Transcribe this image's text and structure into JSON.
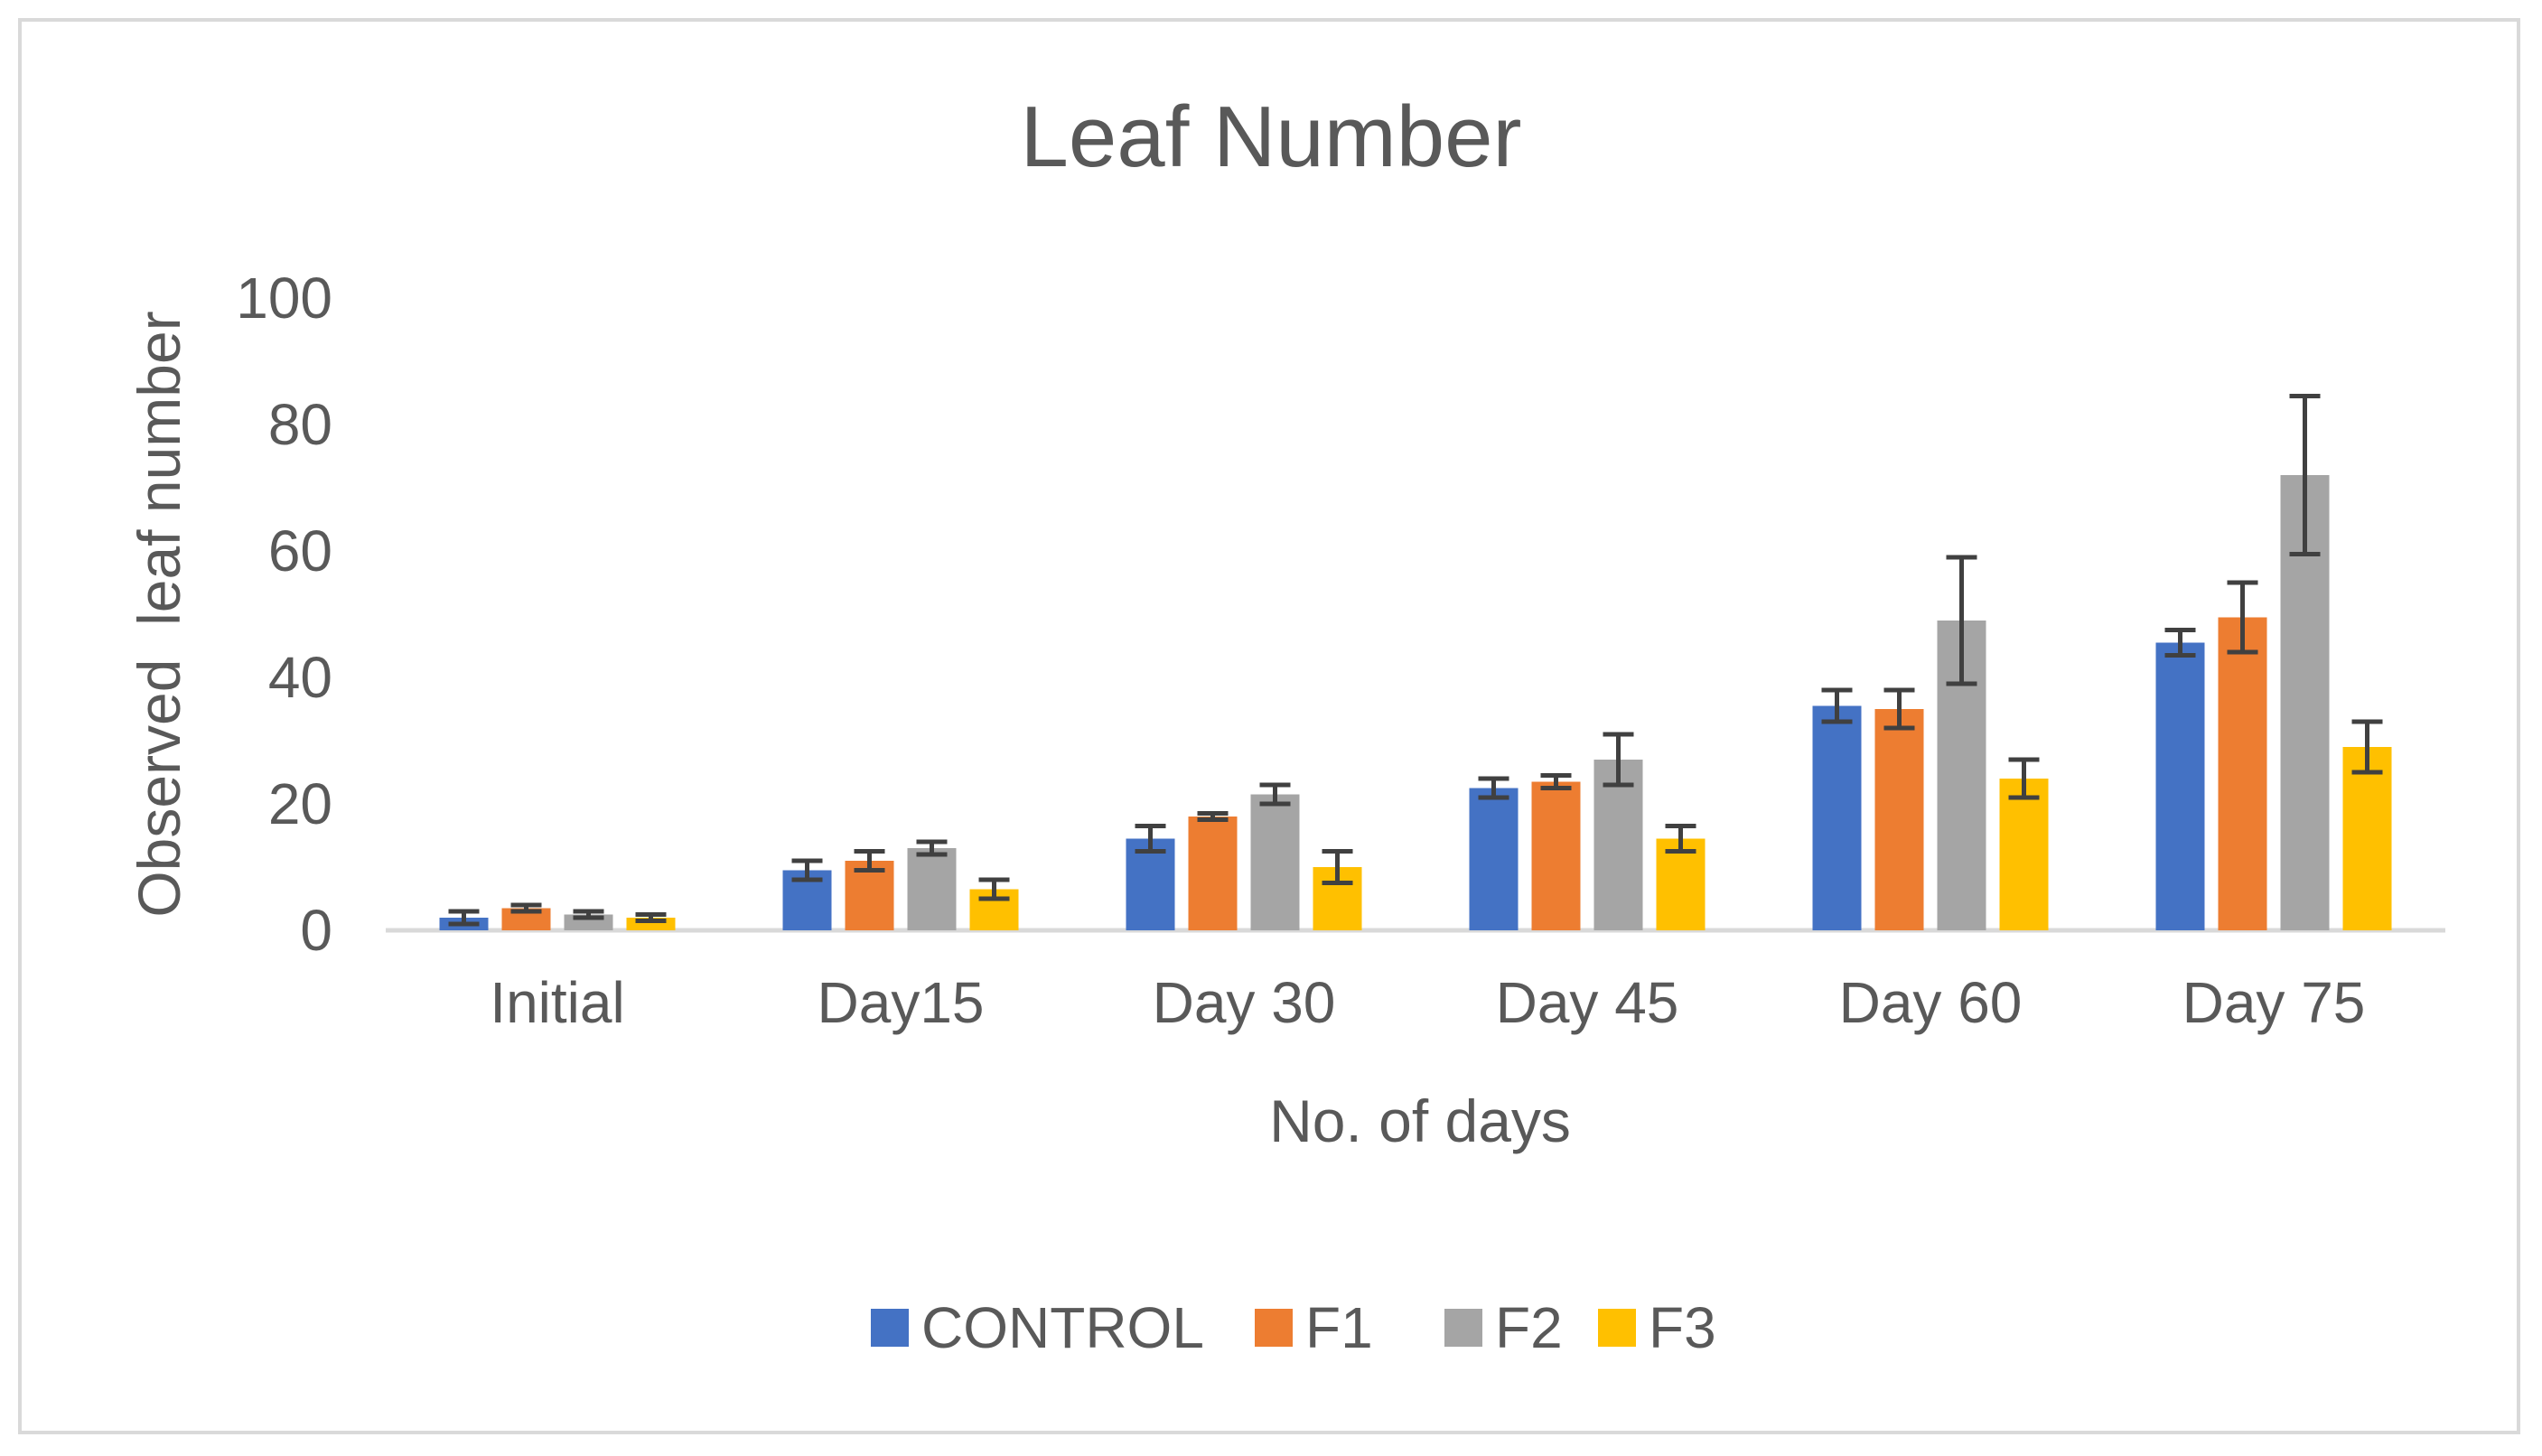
{
  "chart_data": {
    "type": "bar",
    "title": "Leaf Number",
    "xlabel": "No. of days",
    "ylabel": "Observed  leaf number",
    "ylim": [
      0,
      100
    ],
    "yticks": [
      "0",
      "20",
      "40",
      "60",
      "80",
      "100"
    ],
    "categories": [
      "Initial",
      "Day15",
      "Day 30",
      "Day 45",
      "Day 60",
      "Day 75"
    ],
    "series": [
      {
        "name": "CONTROL",
        "color": "#4472c4",
        "values": [
          2,
          9.5,
          14.5,
          22.5,
          35.5,
          45.5
        ],
        "errors": [
          1,
          1.5,
          2,
          1.5,
          2.5,
          2
        ]
      },
      {
        "name": "F1",
        "color": "#ed7d31",
        "values": [
          3.5,
          11,
          18,
          23.5,
          35,
          49.5
        ],
        "errors": [
          0.5,
          1.5,
          0.5,
          1,
          3,
          5.5
        ]
      },
      {
        "name": "F2",
        "color": "#a5a5a5",
        "values": [
          2.5,
          13,
          21.5,
          27,
          49,
          72
        ],
        "errors": [
          0.5,
          1,
          1.5,
          4,
          10,
          12.5
        ]
      },
      {
        "name": "F3",
        "color": "#ffc000",
        "values": [
          2,
          6.5,
          10,
          14.5,
          24,
          29
        ],
        "errors": [
          0.5,
          1.5,
          2.5,
          2,
          3,
          4
        ]
      }
    ]
  }
}
